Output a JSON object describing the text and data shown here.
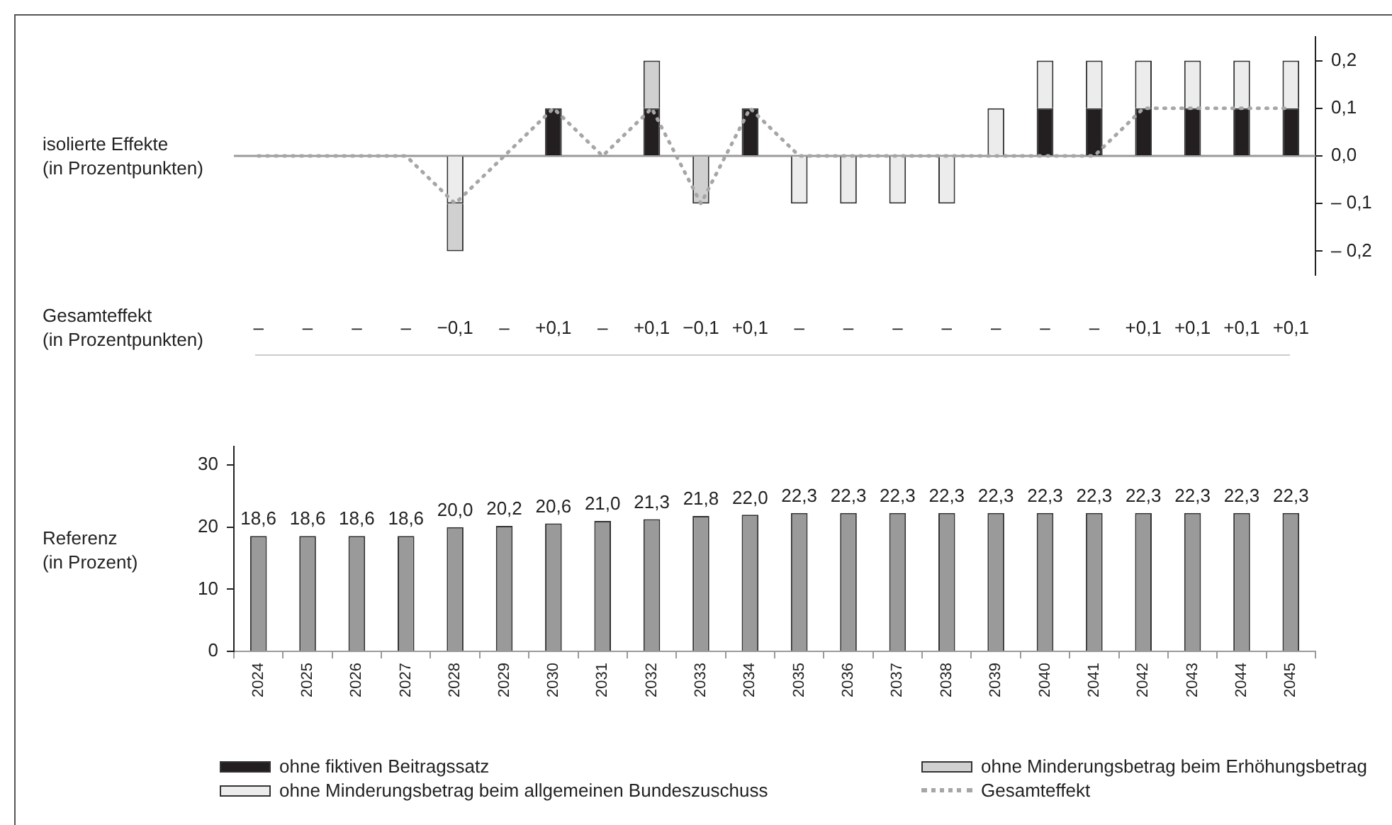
{
  "chart_data": [
    {
      "type": "bar",
      "ylabel": "isolierte Effekte\n(in Prozentpunkten)",
      "annotations": [
        "Gesamteffekt\n(in Prozentpunkten)"
      ],
      "categories": [
        "2024",
        "2025",
        "2026",
        "2027",
        "2028",
        "2029",
        "2030",
        "2031",
        "2032",
        "2033",
        "2034",
        "2035",
        "2036",
        "2037",
        "2038",
        "2039",
        "2040",
        "2041",
        "2042",
        "2043",
        "2044",
        "2045"
      ],
      "series": [
        {
          "name": "ohne fiktiven Beitragssatz",
          "color": "#231f20",
          "values": [
            0,
            0,
            0,
            0,
            0,
            0,
            0.1,
            0,
            0.1,
            0,
            0.1,
            0,
            0,
            0,
            0,
            0,
            0.1,
            0.1,
            0.1,
            0.1,
            0.1,
            0.1
          ]
        },
        {
          "name": "ohne Minderungsbetrag beim allgemeinen Bundeszuschuss",
          "color": "#ececec",
          "values": [
            0,
            0,
            0,
            0,
            -0.1,
            0,
            0,
            0,
            0,
            0,
            0,
            -0.1,
            -0.1,
            -0.1,
            -0.1,
            0.1,
            0.1,
            0.1,
            0.1,
            0.1,
            0.1,
            0.1
          ]
        },
        {
          "name": "ohne Minderungsbetrag beim Erhöhungsbetrag",
          "color": "#d0d0d0",
          "values": [
            0,
            0,
            0,
            0,
            -0.1,
            0,
            0,
            0,
            0.1,
            -0.1,
            0,
            0,
            0,
            0,
            0,
            0,
            0,
            0,
            0,
            0,
            0,
            0
          ]
        },
        {
          "name": "Gesamteffekt",
          "type": "line",
          "color": "#a6a6a6",
          "values": [
            0,
            0,
            0,
            0,
            -0.1,
            0,
            0.1,
            0,
            0.1,
            -0.1,
            0.1,
            0,
            0,
            0,
            0,
            0,
            0,
            0,
            0.1,
            0.1,
            0.1,
            0.1
          ],
          "value_labels": [
            "–",
            "–",
            "–",
            "–",
            "−0,1",
            "–",
            "+0,1",
            "–",
            "+0,1",
            "−0,1",
            "+0,1",
            "–",
            "–",
            "–",
            "–",
            "–",
            "–",
            "–",
            "+0,1",
            "+0,1",
            "+0,1",
            "+0,1"
          ]
        }
      ],
      "stacked": true,
      "ylim": [
        -0.25,
        0.25
      ],
      "yticks": [
        {
          "value": 0.2,
          "label": "0,2"
        },
        {
          "value": 0.1,
          "label": "0,1"
        },
        {
          "value": 0,
          "label": "0,0"
        },
        {
          "value": -0.1,
          "label": "– 0,1"
        },
        {
          "value": -0.2,
          "label": "– 0,2"
        }
      ],
      "ref_lines": [
        {
          "axis": "y",
          "value": 0,
          "color": "#9a9a9a"
        }
      ],
      "grid": false,
      "legend": "bottom",
      "tick_labels": "y",
      "marker": "none",
      "line_style": "dotted"
    },
    {
      "type": "bar",
      "ylabel": "Referenz\n(in Prozent)",
      "categories": [
        "2024",
        "2025",
        "2026",
        "2027",
        "2028",
        "2029",
        "2030",
        "2031",
        "2032",
        "2033",
        "2034",
        "2035",
        "2036",
        "2037",
        "2038",
        "2039",
        "2040",
        "2041",
        "2042",
        "2043",
        "2044",
        "2045"
      ],
      "values": [
        18.6,
        18.6,
        18.6,
        18.6,
        20.0,
        20.2,
        20.6,
        21.0,
        21.3,
        21.8,
        22.0,
        22.3,
        22.3,
        22.3,
        22.3,
        22.3,
        22.3,
        22.3,
        22.3,
        22.3,
        22.3,
        22.3
      ],
      "color": "#9a9a9a",
      "value_labels": [
        "18,6",
        "18,6",
        "18,6",
        "18,6",
        "20,0",
        "20,2",
        "20,6",
        "21,0",
        "21,3",
        "21,8",
        "22,0",
        "22,3",
        "22,3",
        "22,3",
        "22,3",
        "22,3",
        "22,3",
        "22,3",
        "22,3",
        "22,3",
        "22,3",
        "22,3"
      ],
      "ylim": [
        0,
        33
      ],
      "yticks": [
        0,
        10,
        20,
        30
      ],
      "grid": false,
      "legend": false
    }
  ]
}
